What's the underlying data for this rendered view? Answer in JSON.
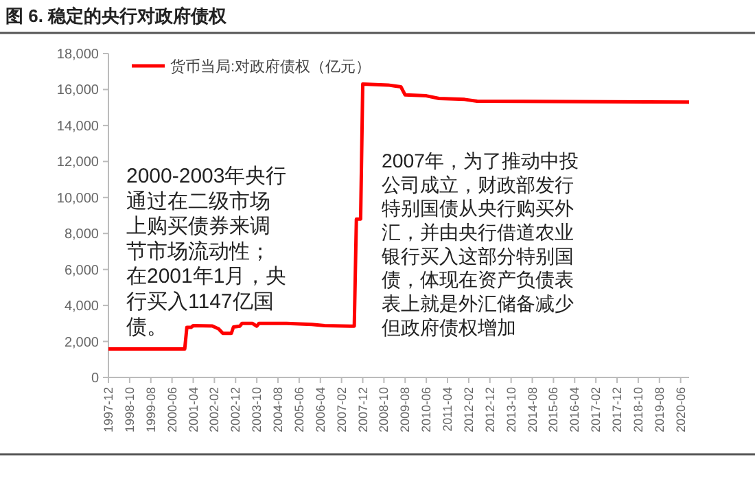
{
  "chart_data": {
    "type": "line",
    "title": "图 6. 稳定的央行对政府债权",
    "x": [
      "1997-12",
      "2000-12",
      "2001-01",
      "2001-03",
      "2001-04",
      "2002-01",
      "2002-04",
      "2002-06",
      "2002-10",
      "2002-11",
      "2003-02",
      "2003-03",
      "2003-08",
      "2003-10",
      "2003-11",
      "2004-12",
      "2005-12",
      "2006-06",
      "2007-06",
      "2007-08",
      "2007-09",
      "2007-11",
      "2007-12",
      "2008-12",
      "2009-03",
      "2009-06",
      "2009-08",
      "2010-06",
      "2010-12",
      "2011-12",
      "2012-06",
      "2020-10"
    ],
    "series": [
      {
        "name": "货币当局:对政府债权（亿元）",
        "color": "#ff0000",
        "values": [
          1580,
          1580,
          2780,
          2780,
          2880,
          2860,
          2700,
          2450,
          2450,
          2800,
          2850,
          3000,
          3000,
          2850,
          3000,
          3000,
          2950,
          2880,
          2850,
          2850,
          8800,
          8800,
          16300,
          16250,
          16200,
          16150,
          15700,
          15650,
          15500,
          15450,
          15350,
          15300
        ]
      }
    ],
    "xlim": [
      "1997-12",
      "2020-10"
    ],
    "xticks": [
      "1997-12",
      "1998-10",
      "1999-08",
      "2000-06",
      "2001-04",
      "2002-02",
      "2002-12",
      "2003-10",
      "2004-08",
      "2005-06",
      "2006-04",
      "2007-02",
      "2007-12",
      "2008-10",
      "2009-08",
      "2010-06",
      "2011-04",
      "2012-02",
      "2012-12",
      "2013-10",
      "2014-08",
      "2015-06",
      "2016-04",
      "2017-02",
      "2017-12",
      "2018-10",
      "2019-08",
      "2020-06"
    ],
    "ylim": [
      0,
      18000
    ],
    "yticks": [
      0,
      {
        "value": 2000,
        "label": "2,000"
      },
      {
        "value": 4000,
        "label": "4,000"
      },
      {
        "value": 6000,
        "label": "6,000"
      },
      {
        "value": 8000,
        "label": "8,000"
      },
      {
        "value": 10000,
        "label": "10,000"
      },
      {
        "value": 12000,
        "label": "12,000"
      },
      {
        "value": 14000,
        "label": "14,000"
      },
      {
        "value": 16000,
        "label": "16,000"
      },
      {
        "value": 18000,
        "label": "18,000"
      }
    ],
    "annotations": [
      "2000-2003年央行通过在二级市场上购买债券来调节市场流动性；在2001年1月，央行买入1147亿国债。",
      "2007年，为了推动中投公司成立，财政部发行特别国债从央行购买外汇，并由央行借道农业银行买入这部分特别国债，体现在资产负债表表上就是外汇储备减少但政府债权增加"
    ],
    "grid": false,
    "legend": "top left"
  }
}
